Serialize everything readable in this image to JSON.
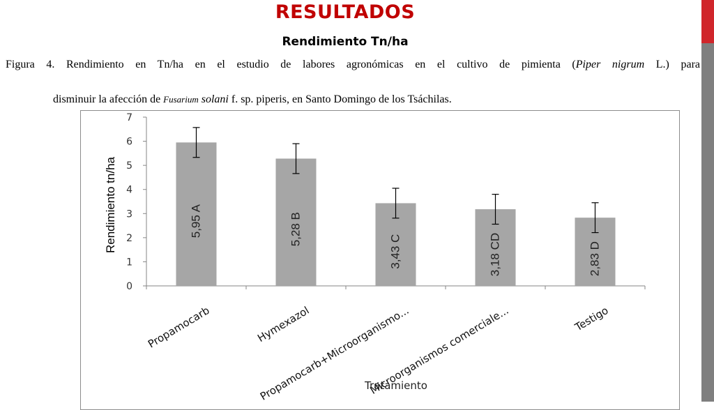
{
  "slide": {
    "title": "RESULTADOS",
    "subtitle": "Rendimiento Tn/ha",
    "caption_line1_prefix": "Figura 4. Rendimiento en Tn/ha  en el estudio de labores agronómicas en el cultivo de  pimienta (",
    "caption_line1_italic": "Piper nigrum",
    "caption_line1_suffix": " L.) para",
    "caption_line2_prefix": "disminuir la afección  de ",
    "caption_line2_italic_small": "Fusarium",
    "caption_line2_italic": " solani",
    "caption_line2_suffix": " f. sp. piperis, en Santo Domingo de los Tsáchilas.",
    "accent_color": "#c00000",
    "bar_red": "#d0262b",
    "bar_gray": "#7f7f7f"
  },
  "chart_data": {
    "type": "bar",
    "categories": [
      "Propamocarb",
      "Hymexazol",
      "Propamocarb+Microorganismo...",
      "Microorganismos comerciale...",
      "Testigo"
    ],
    "values": [
      5.95,
      5.28,
      3.43,
      3.18,
      2.83
    ],
    "errors": [
      0.62,
      0.62,
      0.62,
      0.62,
      0.62
    ],
    "bar_labels": [
      "5,95   A",
      "5,28   B",
      "3,43   C",
      "3,18   CD",
      "2,83   D"
    ],
    "ylabel": "Rendimiento tn/ha",
    "xlabel": "Tratamiento",
    "yticks": [
      "0",
      "1",
      "2",
      "3",
      "4",
      "5",
      "6",
      "7"
    ],
    "ylim": [
      0,
      7
    ],
    "grid": false,
    "bar_color": "#a6a6a6"
  }
}
